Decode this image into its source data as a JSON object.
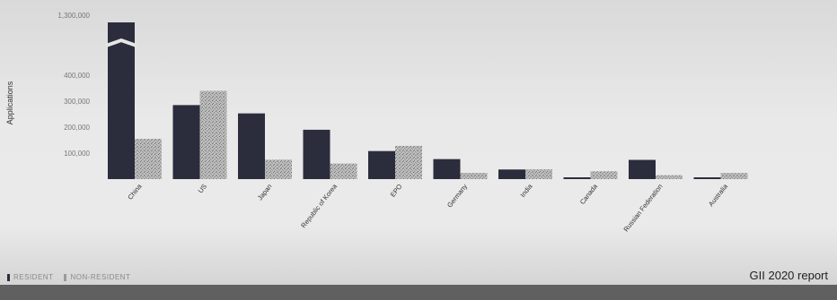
{
  "chart_data": {
    "type": "bar",
    "ylabel": "Applications",
    "y_ticks": [
      "100,000",
      "200,000",
      "300,000",
      "400,000",
      "1,300,000"
    ],
    "axis_break": true,
    "categories": [
      "China",
      "US",
      "Japan",
      "Republic of Korea",
      "EPO",
      "Germany",
      "India",
      "Canada",
      "Russian Federation",
      "Australia"
    ],
    "series": [
      {
        "name": "RESIDENT",
        "values": [
          1300000,
          285000,
          253000,
          190000,
          108000,
          77000,
          37000,
          6000,
          74000,
          5000
        ]
      },
      {
        "name": "NON-RESIDENT",
        "values": [
          155000,
          340000,
          75000,
          60000,
          128000,
          24000,
          38000,
          30000,
          15000,
          24000
        ]
      }
    ],
    "colors": {
      "resident": "#2b2d3d",
      "non_resident": "#b5b5b5"
    }
  },
  "legend": {
    "resident_label": "RESIDENT",
    "non_resident_label": "NON-RESIDENT"
  },
  "source": "GII 2020 report"
}
